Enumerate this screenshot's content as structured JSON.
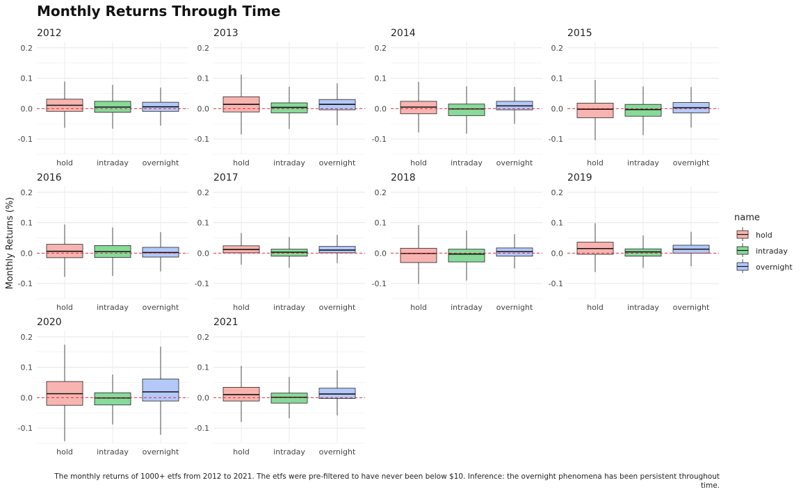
{
  "chart_data": {
    "type": "box",
    "title": "Monthly Returns Through Time",
    "ylabel": "Monthly Returns (%)",
    "caption_lines": [
      "The monthly returns of 1000+ etfs from 2012 to 2021. The etfs were pre-filtered to have never been below $10. Inference: the overnight phenomena has been persistent throughout",
      "time."
    ],
    "legend": {
      "title": "name",
      "position": "right",
      "entries": [
        "hold",
        "intraday",
        "overnight"
      ]
    },
    "series_colors": {
      "hold": "#F8B4B0",
      "intraday": "#87DA9A",
      "overnight": "#B4C9FA"
    },
    "reference_line": {
      "y": 0,
      "color": "#E0182B",
      "style": "dashed"
    },
    "ylim": [
      -0.15,
      0.22
    ],
    "yticks": [
      -0.1,
      0.0,
      0.1,
      0.2
    ],
    "ytick_labels": [
      "-0.1",
      "0.0",
      "0.1",
      "0.2"
    ],
    "categories": [
      "hold",
      "intraday",
      "overnight"
    ],
    "facets": [
      {
        "year": "2012",
        "boxes": [
          {
            "name": "hold",
            "min": -0.063,
            "q1": -0.009,
            "median": 0.011,
            "q3": 0.031,
            "max": 0.089
          },
          {
            "name": "intraday",
            "min": -0.066,
            "q1": -0.012,
            "median": 0.005,
            "q3": 0.024,
            "max": 0.078
          },
          {
            "name": "overnight",
            "min": -0.056,
            "q1": -0.009,
            "median": 0.006,
            "q3": 0.021,
            "max": 0.069
          }
        ]
      },
      {
        "year": "2013",
        "boxes": [
          {
            "name": "hold",
            "min": -0.085,
            "q1": -0.011,
            "median": 0.014,
            "q3": 0.039,
            "max": 0.112
          },
          {
            "name": "intraday",
            "min": -0.067,
            "q1": -0.014,
            "median": 0.004,
            "q3": 0.019,
            "max": 0.072
          },
          {
            "name": "overnight",
            "min": -0.055,
            "q1": -0.004,
            "median": 0.014,
            "q3": 0.03,
            "max": 0.083
          }
        ]
      },
      {
        "year": "2014",
        "boxes": [
          {
            "name": "hold",
            "min": -0.078,
            "q1": -0.017,
            "median": 0.005,
            "q3": 0.024,
            "max": 0.088
          },
          {
            "name": "intraday",
            "min": -0.082,
            "q1": -0.023,
            "median": -0.001,
            "q3": 0.015,
            "max": 0.073
          },
          {
            "name": "overnight",
            "min": -0.05,
            "q1": -0.004,
            "median": 0.009,
            "q3": 0.024,
            "max": 0.071
          }
        ]
      },
      {
        "year": "2015",
        "boxes": [
          {
            "name": "hold",
            "min": -0.104,
            "q1": -0.03,
            "median": -0.002,
            "q3": 0.018,
            "max": 0.094
          },
          {
            "name": "intraday",
            "min": -0.087,
            "q1": -0.025,
            "median": -0.003,
            "q3": 0.014,
            "max": 0.073
          },
          {
            "name": "overnight",
            "min": -0.062,
            "q1": -0.014,
            "median": 0.003,
            "q3": 0.02,
            "max": 0.071
          }
        ]
      },
      {
        "year": "2016",
        "boxes": [
          {
            "name": "hold",
            "min": -0.078,
            "q1": -0.015,
            "median": 0.006,
            "q3": 0.029,
            "max": 0.094
          },
          {
            "name": "intraday",
            "min": -0.075,
            "q1": -0.014,
            "median": 0.005,
            "q3": 0.025,
            "max": 0.084
          },
          {
            "name": "overnight",
            "min": -0.06,
            "q1": -0.013,
            "median": 0.002,
            "q3": 0.019,
            "max": 0.069
          }
        ]
      },
      {
        "year": "2017",
        "boxes": [
          {
            "name": "hold",
            "min": -0.038,
            "q1": 0.001,
            "median": 0.012,
            "q3": 0.024,
            "max": 0.066
          },
          {
            "name": "intraday",
            "min": -0.048,
            "q1": -0.01,
            "median": 0.003,
            "q3": 0.013,
            "max": 0.053
          },
          {
            "name": "overnight",
            "min": -0.033,
            "q1": 0.001,
            "median": 0.01,
            "q3": 0.022,
            "max": 0.06
          }
        ]
      },
      {
        "year": "2018",
        "boxes": [
          {
            "name": "hold",
            "min": -0.101,
            "q1": -0.031,
            "median": -0.001,
            "q3": 0.016,
            "max": 0.092
          },
          {
            "name": "intraday",
            "min": -0.09,
            "q1": -0.029,
            "median": -0.003,
            "q3": 0.013,
            "max": 0.074
          },
          {
            "name": "overnight",
            "min": -0.05,
            "q1": -0.01,
            "median": 0.005,
            "q3": 0.017,
            "max": 0.062
          }
        ]
      },
      {
        "year": "2019",
        "boxes": [
          {
            "name": "hold",
            "min": -0.062,
            "q1": -0.004,
            "median": 0.015,
            "q3": 0.036,
            "max": 0.098
          },
          {
            "name": "intraday",
            "min": -0.048,
            "q1": -0.01,
            "median": 0.004,
            "q3": 0.014,
            "max": 0.058
          },
          {
            "name": "overnight",
            "min": -0.043,
            "q1": 0.0,
            "median": 0.013,
            "q3": 0.026,
            "max": 0.07
          }
        ]
      },
      {
        "year": "2020",
        "boxes": [
          {
            "name": "hold",
            "min": -0.143,
            "q1": -0.025,
            "median": 0.013,
            "q3": 0.053,
            "max": 0.174
          },
          {
            "name": "intraday",
            "min": -0.088,
            "q1": -0.024,
            "median": -0.001,
            "q3": 0.016,
            "max": 0.076
          },
          {
            "name": "overnight",
            "min": -0.122,
            "q1": -0.011,
            "median": 0.019,
            "q3": 0.061,
            "max": 0.168
          }
        ]
      },
      {
        "year": "2021",
        "boxes": [
          {
            "name": "hold",
            "min": -0.08,
            "q1": -0.011,
            "median": 0.01,
            "q3": 0.034,
            "max": 0.104
          },
          {
            "name": "intraday",
            "min": -0.068,
            "q1": -0.018,
            "median": 0.001,
            "q3": 0.015,
            "max": 0.068
          },
          {
            "name": "overnight",
            "min": -0.058,
            "q1": -0.003,
            "median": 0.012,
            "q3": 0.031,
            "max": 0.09
          }
        ]
      }
    ]
  }
}
